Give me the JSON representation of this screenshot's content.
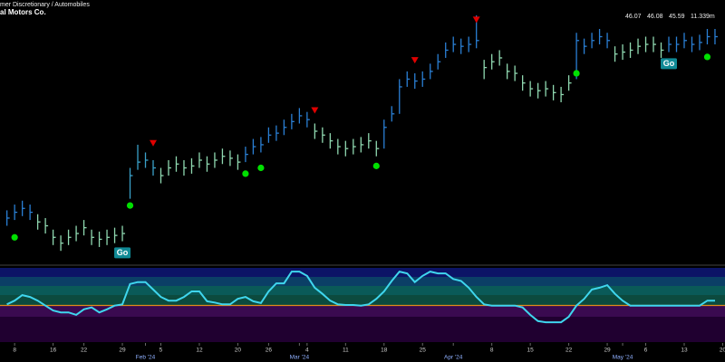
{
  "header": {
    "sector": "mer Discretionary / Automobiles",
    "name": "al Motors Co."
  },
  "chart_data": {
    "type": "ohlc",
    "quote_labels": [
      "46.07",
      "46.08",
      "45.59",
      "11.339m"
    ],
    "xlim": [
      -0.9,
      93.3
    ],
    "ylim": [
      34.1,
      47.7
    ],
    "xticks": [
      {
        "value": 1,
        "label": "8"
      },
      {
        "value": 6,
        "label": "16"
      },
      {
        "value": 10,
        "label": "22"
      },
      {
        "value": 15,
        "label": "29"
      },
      {
        "value": 18,
        "label": "Feb '24"
      },
      {
        "value": 20,
        "label": "5"
      },
      {
        "value": 25,
        "label": "12"
      },
      {
        "value": 30,
        "label": "20"
      },
      {
        "value": 34,
        "label": "26"
      },
      {
        "value": 38,
        "label": "Mar '24"
      },
      {
        "value": 39,
        "label": "4"
      },
      {
        "value": 44,
        "label": "11"
      },
      {
        "value": 49,
        "label": "18"
      },
      {
        "value": 54,
        "label": "25"
      },
      {
        "value": 58,
        "label": "Apr '24"
      },
      {
        "value": 63,
        "label": "8"
      },
      {
        "value": 68,
        "label": "15"
      },
      {
        "value": 73,
        "label": "22"
      },
      {
        "value": 78,
        "label": "29"
      },
      {
        "value": 80,
        "label": "May '24"
      },
      {
        "value": 83,
        "label": "6"
      },
      {
        "value": 88,
        "label": "13"
      },
      {
        "value": 93,
        "label": "20"
      }
    ],
    "high": [
      36.8,
      37.1,
      37.3,
      37.1,
      36.6,
      36.4,
      35.8,
      35.5,
      35.8,
      36.0,
      36.3,
      35.8,
      35.7,
      35.8,
      35.9,
      36.0,
      39.0,
      40.2,
      39.8,
      39.4,
      39.0,
      39.4,
      39.6,
      39.4,
      39.5,
      39.8,
      39.6,
      39.8,
      40.0,
      39.9,
      39.7,
      40.1,
      40.5,
      40.6,
      41.1,
      41.2,
      41.5,
      41.8,
      42.1,
      41.9,
      41.3,
      41.1,
      40.8,
      40.5,
      40.4,
      40.5,
      40.6,
      40.8,
      40.4,
      41.5,
      42.2,
      43.6,
      44.0,
      43.9,
      44.0,
      44.4,
      44.9,
      45.5,
      45.8,
      45.7,
      45.8,
      46.9,
      44.6,
      44.9,
      45.1,
      44.4,
      44.3,
      43.8,
      43.5,
      43.4,
      43.5,
      43.3,
      43.2,
      43.8,
      46.0,
      45.7,
      46.0,
      46.2,
      46.0,
      45.3,
      45.4,
      45.5,
      45.7,
      45.8,
      45.8,
      45.5,
      45.8,
      45.8,
      46.0,
      45.8,
      45.9,
      46.2,
      46.2
    ],
    "low": [
      36.0,
      36.3,
      36.5,
      36.3,
      35.8,
      35.6,
      35.0,
      34.7,
      35.0,
      35.2,
      35.5,
      35.0,
      34.9,
      35.0,
      35.1,
      35.2,
      37.4,
      38.9,
      39.0,
      38.6,
      38.2,
      38.6,
      38.8,
      38.6,
      38.7,
      39.0,
      38.8,
      39.0,
      39.2,
      39.1,
      38.9,
      39.3,
      39.7,
      39.8,
      40.3,
      40.4,
      40.7,
      41.0,
      41.3,
      41.1,
      40.5,
      40.3,
      40.0,
      39.7,
      39.6,
      39.7,
      39.8,
      40.0,
      39.6,
      40.0,
      41.4,
      41.8,
      43.2,
      43.1,
      43.2,
      43.6,
      44.1,
      44.7,
      45.0,
      44.9,
      45.0,
      45.2,
      43.6,
      44.1,
      44.3,
      43.6,
      43.5,
      43.0,
      42.7,
      42.6,
      42.7,
      42.5,
      42.4,
      43.0,
      43.6,
      44.9,
      45.2,
      45.4,
      45.2,
      44.5,
      44.6,
      44.7,
      44.9,
      45.0,
      45.0,
      44.7,
      45.0,
      45.0,
      45.2,
      45.0,
      45.1,
      45.4,
      45.4
    ],
    "close": [
      36.4,
      36.7,
      36.9,
      36.7,
      36.2,
      36.0,
      35.4,
      35.1,
      35.4,
      35.6,
      35.9,
      35.4,
      35.3,
      35.4,
      35.5,
      35.6,
      38.6,
      39.3,
      39.4,
      39.0,
      38.6,
      39.0,
      39.2,
      39.0,
      39.1,
      39.4,
      39.2,
      39.4,
      39.6,
      39.5,
      39.3,
      39.7,
      40.1,
      40.2,
      40.7,
      40.8,
      41.1,
      41.4,
      41.7,
      41.5,
      40.9,
      40.7,
      40.4,
      40.1,
      40.0,
      40.1,
      40.2,
      40.4,
      40.0,
      41.1,
      41.8,
      43.2,
      43.6,
      43.5,
      43.6,
      44.0,
      44.5,
      45.1,
      45.4,
      45.3,
      45.4,
      45.6,
      44.2,
      44.5,
      44.7,
      44.0,
      43.9,
      43.4,
      43.1,
      43.0,
      43.1,
      42.9,
      42.8,
      43.4,
      45.6,
      45.3,
      45.6,
      45.8,
      45.6,
      44.9,
      45.0,
      45.1,
      45.3,
      45.4,
      45.4,
      45.1,
      45.4,
      45.4,
      45.6,
      45.4,
      45.5,
      45.8,
      45.8
    ],
    "colors": [
      "#2a7fd4",
      "#2a7fd4",
      "#2a7fd4",
      "#2a7fd4",
      "#8fd8b0",
      "#8fd8b0",
      "#8fd8b0",
      "#8fd8b0",
      "#8fd8b0",
      "#8fd8b0",
      "#8fd8b0",
      "#8fd8b0",
      "#8fd8b0",
      "#8fd8b0",
      "#8fd8b0",
      "#8fd8b0",
      "#3aa0c8",
      "#3aa0c8",
      "#3aa0c8",
      "#3aa0c8",
      "#8fd8b0",
      "#8fd8b0",
      "#8fd8b0",
      "#8fd8b0",
      "#8fd8b0",
      "#8fd8b0",
      "#8fd8b0",
      "#8fd8b0",
      "#8fd8b0",
      "#8fd8b0",
      "#8fd8b0",
      "#2a7fd4",
      "#2a7fd4",
      "#2a7fd4",
      "#2a7fd4",
      "#2a7fd4",
      "#2a7fd4",
      "#2a7fd4",
      "#2a7fd4",
      "#2a7fd4",
      "#8fd8b0",
      "#8fd8b0",
      "#8fd8b0",
      "#8fd8b0",
      "#8fd8b0",
      "#8fd8b0",
      "#8fd8b0",
      "#8fd8b0",
      "#8fd8b0",
      "#2a7fd4",
      "#2a7fd4",
      "#2a7fd4",
      "#2a7fd4",
      "#2a7fd4",
      "#2a7fd4",
      "#2a7fd4",
      "#2a7fd4",
      "#2a7fd4",
      "#2a7fd4",
      "#2a7fd4",
      "#2a7fd4",
      "#2a7fd4",
      "#8fd8b0",
      "#8fd8b0",
      "#8fd8b0",
      "#8fd8b0",
      "#8fd8b0",
      "#8fd8b0",
      "#8fd8b0",
      "#8fd8b0",
      "#8fd8b0",
      "#8fd8b0",
      "#8fd8b0",
      "#8fd8b0",
      "#2a7fd4",
      "#2a7fd4",
      "#2a7fd4",
      "#2a7fd4",
      "#2a7fd4",
      "#8fd8b0",
      "#8fd8b0",
      "#8fd8b0",
      "#8fd8b0",
      "#8fd8b0",
      "#8fd8b0",
      "#8fd8b0",
      "#2a7fd4",
      "#2a7fd4",
      "#2a7fd4",
      "#2a7fd4",
      "#2a7fd4",
      "#2a7fd4",
      "#2a7fd4"
    ],
    "go_dots": {
      "color": "#00e000",
      "points": [
        {
          "index": 1,
          "value": 35.4
        },
        {
          "index": 16,
          "value": 37.05
        },
        {
          "index": 31,
          "value": 38.7
        },
        {
          "index": 33,
          "value": 39.0
        },
        {
          "index": 48,
          "value": 39.1
        },
        {
          "index": 74,
          "value": 43.9
        },
        {
          "index": 91,
          "value": 44.75
        }
      ]
    },
    "triangles": {
      "color": "#e00000",
      "points": [
        {
          "index": 19,
          "value": 40.3
        },
        {
          "index": 40,
          "value": 42.0
        },
        {
          "index": 53,
          "value": 44.6
        },
        {
          "index": 61,
          "value": 46.7
        }
      ]
    },
    "go_labels": [
      {
        "index": 15,
        "value": 34.6,
        "label": "Go"
      },
      {
        "index": 86,
        "value": 44.4,
        "label": "Go"
      }
    ],
    "oscillator": {
      "color": "#3fd6ee",
      "ylim": [
        -6,
        6
      ],
      "values": [
        0.1,
        0.7,
        1.6,
        1.3,
        0.7,
        -0.1,
        -0.9,
        -1.2,
        -1.2,
        -1.6,
        -0.7,
        -0.4,
        -1.2,
        -0.7,
        -0.1,
        0.1,
        3.4,
        3.7,
        3.7,
        2.5,
        1.3,
        0.7,
        0.7,
        1.3,
        2.2,
        2.2,
        0.6,
        0.4,
        0.1,
        0.1,
        1.0,
        1.3,
        0.6,
        0.3,
        2.2,
        3.5,
        3.5,
        5.4,
        5.4,
        4.7,
        2.8,
        1.8,
        0.7,
        0.1,
        0,
        0,
        -0.1,
        0.1,
        1.0,
        2.2,
        3.9,
        5.4,
        5.1,
        3.7,
        4.7,
        5.4,
        5.1,
        5.1,
        4.2,
        3.9,
        2.8,
        1.3,
        0.1,
        -0.1,
        -0.1,
        -0.1,
        -0.1,
        -0.4,
        -1.6,
        -2.6,
        -2.8,
        -2.8,
        -2.8,
        -1.9,
        -0.1,
        1.0,
        2.5,
        2.8,
        3.2,
        1.8,
        0.7,
        -0.1,
        -0.1,
        -0.1,
        -0.1,
        -0.1,
        -0.1,
        -0.1,
        -0.1,
        -0.1,
        -0.1,
        0.7,
        0.7
      ]
    }
  }
}
